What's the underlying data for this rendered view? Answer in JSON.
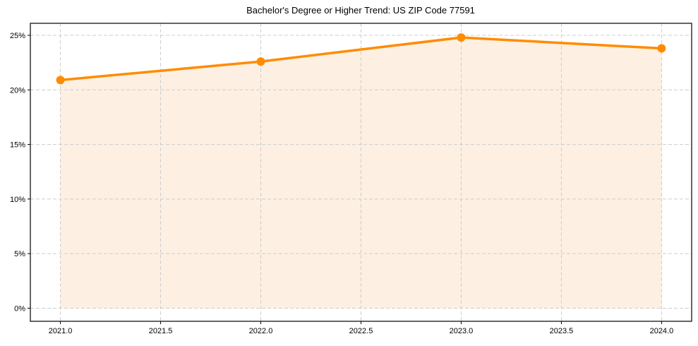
{
  "chart_data": {
    "type": "line",
    "title": "Bachelor's Degree or Higher Trend: US ZIP Code 77591",
    "xlabel": "",
    "ylabel": "",
    "x": [
      2021,
      2022,
      2023,
      2024
    ],
    "series": [
      {
        "name": "Bachelor's Degree or Higher",
        "values": [
          20.9,
          22.6,
          24.8,
          23.8
        ],
        "color": "#ff8c00",
        "fill": "#fdf0e3"
      }
    ],
    "xticks": [
      "2021.0",
      "2021.5",
      "2022.0",
      "2022.5",
      "2023.0",
      "2023.5",
      "2024.0"
    ],
    "yticks": [
      "0%",
      "5%",
      "10%",
      "15%",
      "20%",
      "25%"
    ],
    "xlim": [
      2020.85,
      2024.15
    ],
    "ylim": [
      -1.2,
      26.1
    ],
    "grid": true,
    "legend": null
  }
}
